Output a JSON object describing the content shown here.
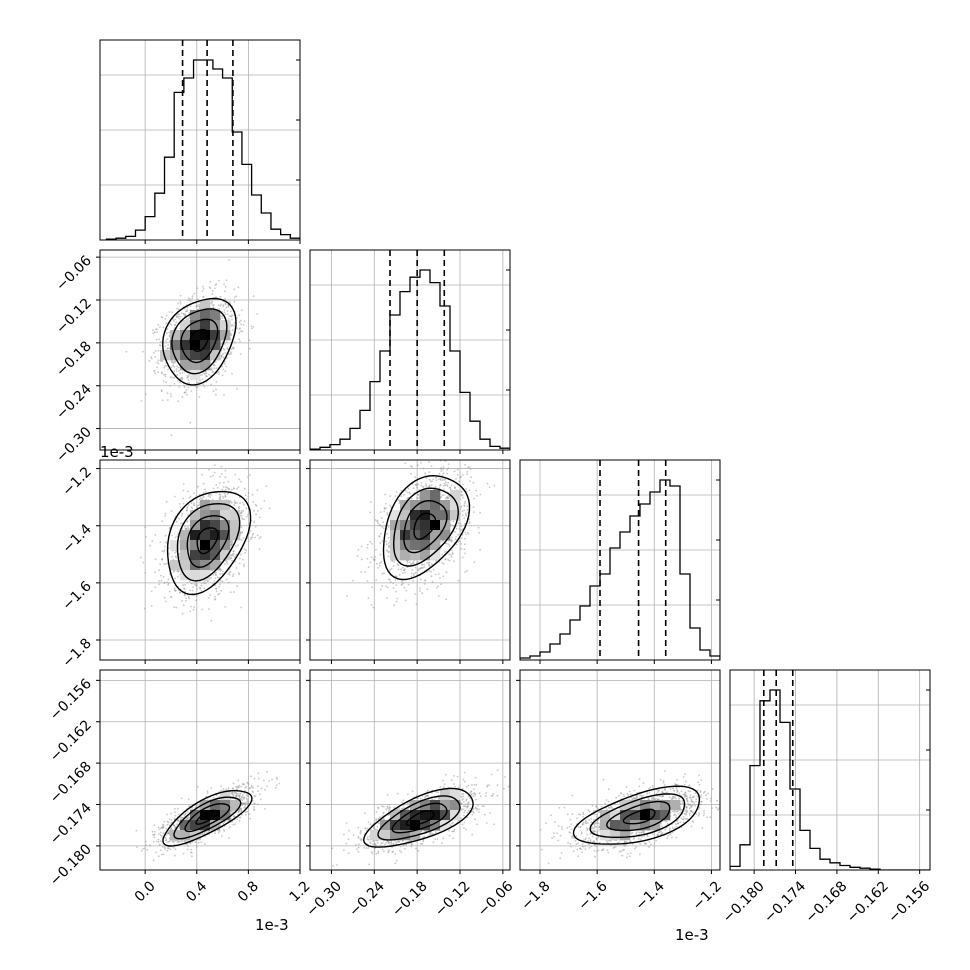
{
  "chart_data": {
    "type": "corner",
    "grid": true,
    "colors": {
      "line": "#000000",
      "grid": "#b0b0b0",
      "point": "#9a9a9a",
      "fill_dark": "#000000",
      "fill_light": "#ffffff"
    },
    "offset_texts": [
      {
        "id": "offset-p0-y",
        "text": "1e-3"
      },
      {
        "id": "offset-p0-x",
        "text": "1e-3"
      },
      {
        "id": "offset-p2-x",
        "text": "1e-3"
      }
    ],
    "params": [
      {
        "range": [
          -0.35,
          1.2
        ],
        "ticks": [
          0.0,
          0.4,
          0.8,
          1.2
        ],
        "tick_labels": [
          "0.0",
          "0.4",
          "0.8",
          "1.2"
        ],
        "mean": 0.5,
        "sd": 0.18,
        "quantiles": [
          0.29,
          0.48,
          0.68
        ],
        "hist_bins": [
          -0.3,
          -0.225,
          -0.15,
          -0.075,
          0.0,
          0.075,
          0.15,
          0.225,
          0.3,
          0.375,
          0.45,
          0.525,
          0.6,
          0.675,
          0.75,
          0.825,
          0.9,
          0.975,
          1.05,
          1.125,
          1.2
        ],
        "hist_heights": [
          0.005,
          0.01,
          0.02,
          0.055,
          0.13,
          0.26,
          0.46,
          0.82,
          0.9,
          1.0,
          1.0,
          0.95,
          0.9,
          0.6,
          0.42,
          0.25,
          0.15,
          0.06,
          0.03,
          0.01
        ]
      },
      {
        "range": [
          -0.33,
          -0.05
        ],
        "ticks": [
          -0.3,
          -0.24,
          -0.18,
          -0.12,
          -0.06
        ],
        "tick_labels": [
          "−0.30",
          "−0.24",
          "−0.18",
          "−0.12",
          "−0.06"
        ],
        "mean": -0.18,
        "sd": 0.038,
        "quantiles": [
          -0.218,
          -0.18,
          -0.142
        ],
        "hist_bins": [
          -0.33,
          -0.316,
          -0.302,
          -0.288,
          -0.274,
          -0.26,
          -0.246,
          -0.232,
          -0.218,
          -0.204,
          -0.19,
          -0.176,
          -0.162,
          -0.148,
          -0.134,
          -0.12,
          -0.106,
          -0.092,
          -0.078,
          -0.064,
          -0.05
        ],
        "hist_heights": [
          0.005,
          0.015,
          0.03,
          0.06,
          0.12,
          0.22,
          0.38,
          0.55,
          0.75,
          0.88,
          0.96,
          1.0,
          0.93,
          0.8,
          0.55,
          0.32,
          0.16,
          0.06,
          0.02,
          0.01
        ]
      },
      {
        "range": [
          -1.87,
          -1.17
        ],
        "ticks": [
          -1.8,
          -1.6,
          -1.4,
          -1.2
        ],
        "tick_labels": [
          "−1.8",
          "−1.6",
          "−1.4",
          "−1.2"
        ],
        "mean": -1.45,
        "sd": 0.11,
        "quantiles": [
          -1.59,
          -1.455,
          -1.36
        ],
        "hist_bins": [
          -1.87,
          -1.835,
          -1.8,
          -1.765,
          -1.73,
          -1.695,
          -1.66,
          -1.625,
          -1.59,
          -1.555,
          -1.52,
          -1.485,
          -1.45,
          -1.415,
          -1.38,
          -1.345,
          -1.31,
          -1.275,
          -1.24,
          -1.205,
          -1.17
        ],
        "hist_heights": [
          0.01,
          0.02,
          0.04,
          0.08,
          0.13,
          0.2,
          0.27,
          0.37,
          0.43,
          0.56,
          0.64,
          0.72,
          0.78,
          0.84,
          0.9,
          0.87,
          0.43,
          0.16,
          0.05,
          0.02
        ]
      },
      {
        "range": [
          -0.1835,
          -0.1545
        ],
        "ticks": [
          -0.18,
          -0.174,
          -0.168,
          -0.162,
          -0.156
        ],
        "tick_labels": [
          "−0.180",
          "−0.174",
          "−0.168",
          "−0.162",
          "−0.156"
        ],
        "mean": -0.1762,
        "sd": 0.0022,
        "quantiles": [
          -0.1786,
          -0.1768,
          -0.1744
        ],
        "hist_bins": [
          -0.1835,
          -0.18205,
          -0.1806,
          -0.17915,
          -0.1777,
          -0.17625,
          -0.1748,
          -0.17335,
          -0.1719,
          -0.17045,
          -0.169,
          -0.16755,
          -0.1661,
          -0.16465,
          -0.1632,
          -0.16175,
          -0.1603,
          -0.15885,
          -0.1574,
          -0.15595,
          -0.1545
        ],
        "hist_heights": [
          0.02,
          0.14,
          0.58,
          0.94,
          1.0,
          0.82,
          0.45,
          0.22,
          0.12,
          0.06,
          0.04,
          0.025,
          0.015,
          0.01,
          0.005,
          0.0,
          0.0,
          0.0,
          0.0,
          0.0
        ]
      }
    ],
    "pairs": [
      {
        "row": 1,
        "col": 0,
        "rho": 0.25,
        "mode": [
          0.42,
          -0.176
        ],
        "spread": [
          0.14,
          0.03
        ],
        "rotation": 0
      },
      {
        "row": 2,
        "col": 0,
        "rho": 0.35,
        "mode": [
          0.48,
          -1.45
        ],
        "spread": [
          0.16,
          0.09
        ],
        "rotation": 0
      },
      {
        "row": 2,
        "col": 1,
        "rho": 0.38,
        "mode": [
          -0.17,
          -1.4
        ],
        "spread": [
          0.03,
          0.09
        ],
        "rotation": 0
      },
      {
        "row": 3,
        "col": 0,
        "rho": 0.75,
        "mode": [
          0.48,
          -0.1758
        ],
        "spread": [
          0.17,
          0.002
        ],
        "rotation": 0
      },
      {
        "row": 3,
        "col": 1,
        "rho": 0.65,
        "mode": [
          -0.175,
          -0.176
        ],
        "spread": [
          0.038,
          0.0021
        ],
        "rotation": 0
      },
      {
        "row": 3,
        "col": 2,
        "rho": 0.55,
        "mode": [
          -1.45,
          -0.1758
        ],
        "spread": [
          0.11,
          0.0021
        ],
        "rotation": 0
      }
    ]
  }
}
